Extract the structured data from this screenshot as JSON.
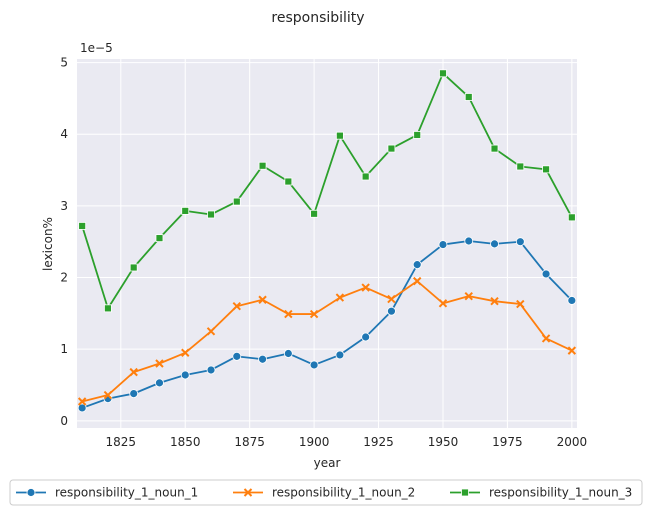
{
  "chart_data": {
    "type": "line",
    "title": "responsibility",
    "xlabel": "year",
    "ylabel": "lexicon%",
    "y_offset_label": "1e−5",
    "xlim": [
      1808,
      2002
    ],
    "ylim": [
      -0.1,
      5.05
    ],
    "x_ticks": [
      1825,
      1850,
      1875,
      1900,
      1925,
      1950,
      1975,
      2000
    ],
    "y_ticks": [
      0,
      1,
      2,
      3,
      4,
      5
    ],
    "grid": true,
    "legend_position": "bottom",
    "x": [
      1810,
      1820,
      1830,
      1840,
      1850,
      1860,
      1870,
      1880,
      1890,
      1900,
      1910,
      1920,
      1930,
      1940,
      1950,
      1960,
      1970,
      1980,
      1990,
      2000
    ],
    "series": [
      {
        "name": "responsibility_1_noun_1",
        "color": "#1f77b4",
        "marker": "circle",
        "values": [
          0.18,
          0.31,
          0.38,
          0.53,
          0.64,
          0.71,
          0.9,
          0.86,
          0.94,
          0.78,
          0.92,
          1.17,
          1.53,
          2.18,
          2.46,
          2.51,
          2.47,
          2.5,
          2.05,
          1.68
        ]
      },
      {
        "name": "responsibility_1_noun_2",
        "color": "#ff7f0e",
        "marker": "x",
        "values": [
          0.27,
          0.36,
          0.68,
          0.8,
          0.95,
          1.25,
          1.6,
          1.69,
          1.49,
          1.49,
          1.72,
          1.86,
          1.7,
          1.95,
          1.64,
          1.74,
          1.67,
          1.63,
          1.15,
          0.98
        ]
      },
      {
        "name": "responsibility_1_noun_3",
        "color": "#2ca02c",
        "marker": "square",
        "values": [
          2.72,
          1.57,
          2.14,
          2.55,
          2.93,
          2.88,
          3.06,
          3.56,
          3.34,
          2.89,
          3.98,
          3.41,
          3.8,
          3.99,
          4.85,
          4.52,
          3.8,
          3.55,
          3.51,
          2.84
        ]
      }
    ]
  }
}
